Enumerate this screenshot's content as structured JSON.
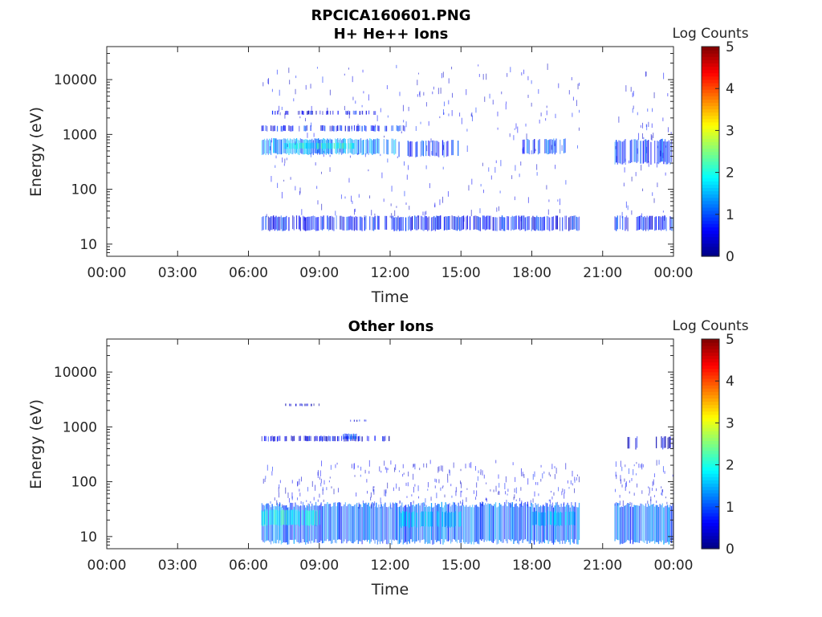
{
  "figure_title": "RPCICA160601.PNG",
  "chart_data": [
    {
      "type": "heatmap",
      "title": "H+ He++ Ions",
      "xlabel": "Time",
      "ylabel": "Energy (eV)",
      "x_ticks": [
        "00:00",
        "03:00",
        "06:00",
        "09:00",
        "12:00",
        "15:00",
        "18:00",
        "21:00",
        "00:00"
      ],
      "xlim_hours": [
        0,
        24
      ],
      "y_scale": "log",
      "ylim": [
        6,
        40000
      ],
      "y_ticks": [
        10,
        100,
        1000,
        10000
      ],
      "y_tick_labels": [
        "10",
        "100",
        "1000",
        "10000"
      ],
      "colorbar": {
        "label": "Log Counts",
        "range": [
          0,
          5
        ],
        "ticks": [
          "0",
          "1",
          "2",
          "3",
          "4",
          "5"
        ],
        "colormap": "jet"
      },
      "bands": [
        {
          "start_h": 6.55,
          "end_h": 12.25,
          "emin": 440,
          "emax": 820,
          "level": 1.3,
          "density": 0.95
        },
        {
          "start_h": 7.5,
          "end_h": 10.5,
          "emin": 550,
          "emax": 700,
          "level": 2.0,
          "density": 0.9
        },
        {
          "start_h": 12.3,
          "end_h": 14.9,
          "emin": 400,
          "emax": 760,
          "level": 0.8,
          "density": 0.55
        },
        {
          "start_h": 17.6,
          "end_h": 19.4,
          "emin": 450,
          "emax": 820,
          "level": 0.9,
          "density": 0.6
        },
        {
          "start_h": 21.5,
          "end_h": 24.0,
          "emin": 300,
          "emax": 780,
          "level": 0.9,
          "density": 0.7
        },
        {
          "start_h": 6.55,
          "end_h": 12.6,
          "emin": 1150,
          "emax": 1450,
          "level": 0.7,
          "density": 0.6
        },
        {
          "start_h": 7.0,
          "end_h": 11.5,
          "emin": 2300,
          "emax": 2700,
          "level": 0.6,
          "density": 0.45
        },
        {
          "start_h": 6.55,
          "end_h": 20.0,
          "emin": 18,
          "emax": 32,
          "level": 0.7,
          "density": 0.75
        },
        {
          "start_h": 21.5,
          "end_h": 24.0,
          "emin": 18,
          "emax": 32,
          "level": 0.7,
          "density": 0.75
        }
      ],
      "noise": [
        {
          "start_h": 6.6,
          "end_h": 20.0,
          "emin": 30,
          "emax": 20000,
          "count": 260
        },
        {
          "start_h": 21.5,
          "end_h": 24.0,
          "emin": 30,
          "emax": 15000,
          "count": 60
        }
      ],
      "gaps": [
        {
          "start_h": 11.55,
          "end_h": 11.7
        },
        {
          "start_h": 11.9,
          "end_h": 12.0
        }
      ]
    },
    {
      "type": "heatmap",
      "title": "Other Ions",
      "xlabel": "Time",
      "ylabel": "Energy (eV)",
      "x_ticks": [
        "00:00",
        "03:00",
        "06:00",
        "09:00",
        "12:00",
        "15:00",
        "18:00",
        "21:00",
        "00:00"
      ],
      "xlim_hours": [
        0,
        24
      ],
      "y_scale": "log",
      "ylim": [
        6,
        40000
      ],
      "y_ticks": [
        10,
        100,
        1000,
        10000
      ],
      "y_tick_labels": [
        "10",
        "100",
        "1000",
        "10000"
      ],
      "colorbar": {
        "label": "Log Counts",
        "range": [
          0,
          5
        ],
        "ticks": [
          "0",
          "1",
          "2",
          "3",
          "4",
          "5"
        ],
        "colormap": "jet"
      },
      "bands": [
        {
          "start_h": 6.55,
          "end_h": 20.0,
          "emin": 8,
          "emax": 38,
          "level": 1.1,
          "density": 1.0
        },
        {
          "start_h": 6.55,
          "end_h": 9.0,
          "emin": 16,
          "emax": 30,
          "level": 1.9,
          "density": 0.9
        },
        {
          "start_h": 12.4,
          "end_h": 15.0,
          "emin": 15,
          "emax": 28,
          "level": 1.6,
          "density": 0.7
        },
        {
          "start_h": 18.0,
          "end_h": 20.0,
          "emin": 16,
          "emax": 28,
          "level": 1.5,
          "density": 0.6
        },
        {
          "start_h": 21.5,
          "end_h": 24.0,
          "emin": 8,
          "emax": 38,
          "level": 1.1,
          "density": 1.0
        },
        {
          "start_h": 6.55,
          "end_h": 12.2,
          "emin": 550,
          "emax": 680,
          "level": 0.5,
          "density": 0.6
        },
        {
          "start_h": 10.0,
          "end_h": 10.7,
          "emin": 600,
          "emax": 750,
          "level": 1.0,
          "density": 0.8
        },
        {
          "start_h": 7.5,
          "end_h": 9.0,
          "emin": 2400,
          "emax": 2650,
          "level": 0.4,
          "density": 0.5
        },
        {
          "start_h": 10.3,
          "end_h": 11.0,
          "emin": 1250,
          "emax": 1350,
          "level": 0.6,
          "density": 0.5
        },
        {
          "start_h": 22.0,
          "end_h": 24.0,
          "emin": 400,
          "emax": 650,
          "level": 0.4,
          "density": 0.35
        }
      ],
      "noise": [
        {
          "start_h": 6.6,
          "end_h": 20.0,
          "emin": 38,
          "emax": 250,
          "count": 260
        },
        {
          "start_h": 21.5,
          "end_h": 24.0,
          "emin": 38,
          "emax": 250,
          "count": 60
        }
      ],
      "gaps": []
    }
  ]
}
